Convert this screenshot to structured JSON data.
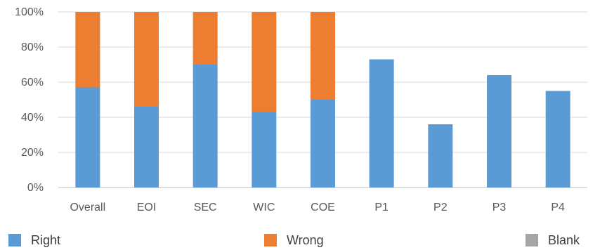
{
  "chart_data": {
    "type": "bar",
    "stacked": true,
    "percent_stacked": true,
    "categories": [
      "Overall",
      "EOI",
      "SEC",
      "WIC",
      "COE",
      "P1",
      "P2",
      "P3",
      "P4"
    ],
    "series": [
      {
        "name": "Right",
        "color": "#5B9BD5",
        "values": [
          0.57,
          0.46,
          0.7,
          0.43,
          0.5,
          0.73,
          0.36,
          0.64,
          0.55
        ]
      },
      {
        "name": "Wrong",
        "color": "#ED7D31",
        "values": [
          0.43,
          0.54,
          0.3,
          0.57,
          0.5,
          0.0,
          0.0,
          0.0,
          0.0
        ]
      },
      {
        "name": "Blank",
        "color": "#A5A5A5",
        "values": [
          0,
          0,
          0,
          0,
          0,
          0,
          0,
          0,
          0
        ]
      }
    ],
    "ylim": [
      0,
      1
    ],
    "yticks": [
      "0%",
      "20%",
      "40%",
      "60%",
      "80%",
      "100%"
    ],
    "grid": true,
    "legend_position": "bottom"
  }
}
